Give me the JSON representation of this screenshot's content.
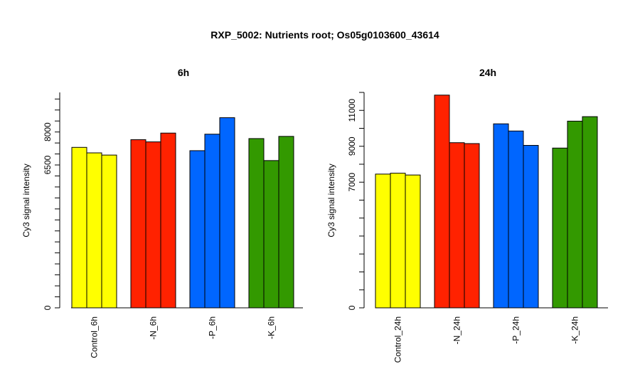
{
  "title": "RXP_5002: Nutrients root; Os05g0103600_43614",
  "chart_data": [
    {
      "type": "bar",
      "title": "6h",
      "ylabel": "Cy3 signal intensity",
      "ylim": [
        0,
        9800
      ],
      "yticks": [
        0,
        6500,
        8000
      ],
      "categories": [
        "Control_6h",
        "-N_6h",
        "-P_6h",
        "-K_6h"
      ],
      "groups": [
        {
          "label": "Control_6h",
          "color": "#FFFF00",
          "values": [
            7300,
            7050,
            6950
          ]
        },
        {
          "label": "-N_6h",
          "color": "#FF2200",
          "values": [
            7650,
            7550,
            7950
          ]
        },
        {
          "label": "-P_6h",
          "color": "#0066FF",
          "values": [
            7150,
            7900,
            8650
          ]
        },
        {
          "label": "-K_6h",
          "color": "#339900",
          "values": [
            7700,
            6700,
            7800
          ]
        }
      ]
    },
    {
      "type": "bar",
      "title": "24h",
      "ylabel": "Cy3 signal intensity",
      "ylim": [
        0,
        12000
      ],
      "yticks": [
        0,
        7000,
        9000,
        11000
      ],
      "categories": [
        "Control_24h",
        "-N_24h",
        "-P_24h",
        "-K_24h"
      ],
      "groups": [
        {
          "label": "Control_24h",
          "color": "#FFFF00",
          "values": [
            7450,
            7500,
            7400
          ]
        },
        {
          "label": "-N_24h",
          "color": "#FF2200",
          "values": [
            11850,
            9200,
            9150
          ]
        },
        {
          "label": "-P_24h",
          "color": "#0066FF",
          "values": [
            10250,
            9850,
            9050
          ]
        },
        {
          "label": "-K_24h",
          "color": "#339900",
          "values": [
            8900,
            10400,
            10650
          ]
        }
      ]
    }
  ]
}
